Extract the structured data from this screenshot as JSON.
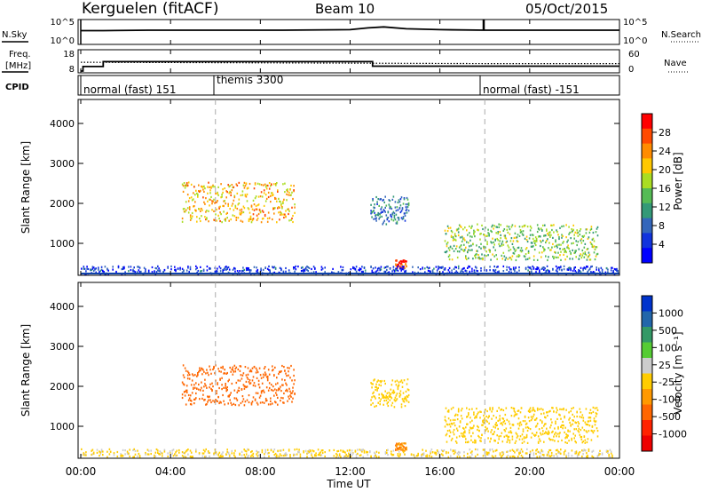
{
  "header": {
    "station": "Kerguelen (fitACF)",
    "beam": "Beam 10",
    "date": "05/Oct/2015"
  },
  "noise_panel": {
    "left_label": "N.Sky",
    "right_label": "N.Search",
    "y_ticks": [
      "10^5",
      "10^0"
    ]
  },
  "freq_panel": {
    "left_label_line1": "Freq.",
    "left_label_line2": "[MHz]",
    "left_ticks": [
      "18",
      "8"
    ],
    "right_label": "Nave",
    "right_ticks": [
      "60",
      "0"
    ]
  },
  "cpid": {
    "label": "CPID",
    "modes": [
      {
        "text": "normal (fast) 151",
        "start_hour": 0
      },
      {
        "text": "themis 3300",
        "start_hour": 6
      },
      {
        "text": "normal (fast) -151",
        "start_hour": 18
      }
    ]
  },
  "power_panel": {
    "ylabel": "Slant Range [km]",
    "colorbar_label": "Power [dB]",
    "colorbar_ticks": [
      "28",
      "24",
      "20",
      "16",
      "12",
      "8",
      "4"
    ],
    "colorbar_colors": [
      "#ff0000",
      "#ff4a00",
      "#ff8c00",
      "#ffc800",
      "#aadd22",
      "#55bb55",
      "#339977",
      "#3366bb",
      "#1133dd",
      "#0000ff"
    ]
  },
  "velocity_panel": {
    "ylabel": "Slant Range [km]",
    "colorbar_label": "Velocity [m s⁻¹]",
    "colorbar_ticks": [
      "1000",
      "500",
      "100",
      "25",
      "-25",
      "-100",
      "-500",
      "-1000"
    ],
    "colorbar_colors": [
      "#0033cc",
      "#2266aa",
      "#339966",
      "#55cc33",
      "#cccccc",
      "#ffcc00",
      "#ff9900",
      "#ff6600",
      "#ff2200",
      "#ee0000"
    ]
  },
  "x_axis": {
    "label": "Time UT",
    "ticks": [
      "00:00",
      "04:00",
      "08:00",
      "12:00",
      "16:00",
      "20:00",
      "00:00"
    ]
  },
  "chart_data": [
    {
      "type": "line",
      "title": "Kerguelen (fitACF)",
      "series": [
        {
          "name": "N.Sky",
          "x_hours": [
            0,
            1,
            3,
            6,
            9,
            12,
            12.8,
            13.5,
            14.5,
            16,
            18,
            20,
            22,
            24
          ],
          "values_log10": [
            2.6,
            2.6,
            2.7,
            2.7,
            2.7,
            2.8,
            3.2,
            3.4,
            3.0,
            2.8,
            2.7,
            2.7,
            2.7,
            2.7
          ]
        }
      ],
      "ylim": [
        0,
        5
      ]
    },
    {
      "type": "line",
      "series": [
        {
          "name": "Freq.",
          "x_hours": [
            0,
            0.1,
            1,
            13,
            24
          ],
          "values": [
            8,
            10.3,
            12.8,
            10.5,
            10.5
          ]
        },
        {
          "name": "Nave",
          "x_hours": [
            0,
            18,
            24
          ],
          "values": [
            27,
            23,
            23
          ]
        }
      ],
      "ylim": [
        8,
        18
      ],
      "y2lim": [
        0,
        60
      ]
    },
    {
      "type": "heatmap",
      "quantity": "Power [dB]",
      "ylabel": "Slant Range [km]",
      "xlabel": "Time UT",
      "x_range_hours": [
        0,
        24
      ],
      "ylim": [
        200,
        4600
      ],
      "y_ticks": [
        1000,
        2000,
        3000,
        4000
      ],
      "colorbar_range": [
        0,
        30
      ],
      "echo_regions": [
        {
          "x_hours": [
            4.5,
            9.5
          ],
          "range_km": [
            1550,
            2550
          ],
          "level": 22
        },
        {
          "x_hours": [
            12.9,
            14.6
          ],
          "range_km": [
            1500,
            2200
          ],
          "level": 10
        },
        {
          "x_hours": [
            14.0,
            14.5
          ],
          "range_km": [
            400,
            600
          ],
          "level": 28
        },
        {
          "x_hours": [
            16.2,
            23.0
          ],
          "range_km": [
            600,
            1500
          ],
          "level": 16
        },
        {
          "x_hours": [
            0,
            24
          ],
          "range_km": [
            250,
            450
          ],
          "level": 6
        }
      ]
    },
    {
      "type": "heatmap",
      "quantity": "Velocity [m s⁻¹]",
      "ylabel": "Slant Range [km]",
      "xlabel": "Time UT",
      "x_range_hours": [
        0,
        24
      ],
      "ylim": [
        200,
        4600
      ],
      "y_ticks": [
        1000,
        2000,
        3000,
        4000
      ],
      "colorbar_range": [
        -1000,
        1000
      ],
      "echo_regions": [
        {
          "x_hours": [
            4.5,
            9.5
          ],
          "range_km": [
            1550,
            2550
          ],
          "velocity": -400
        },
        {
          "x_hours": [
            12.9,
            14.6
          ],
          "range_km": [
            1500,
            2200
          ],
          "velocity": 0
        },
        {
          "x_hours": [
            14.0,
            14.5
          ],
          "range_km": [
            400,
            600
          ],
          "velocity": -250
        },
        {
          "x_hours": [
            16.2,
            23.0
          ],
          "range_km": [
            600,
            1500
          ],
          "velocity": 0
        },
        {
          "x_hours": [
            0,
            24
          ],
          "range_km": [
            250,
            450
          ],
          "velocity": 60
        }
      ]
    }
  ]
}
